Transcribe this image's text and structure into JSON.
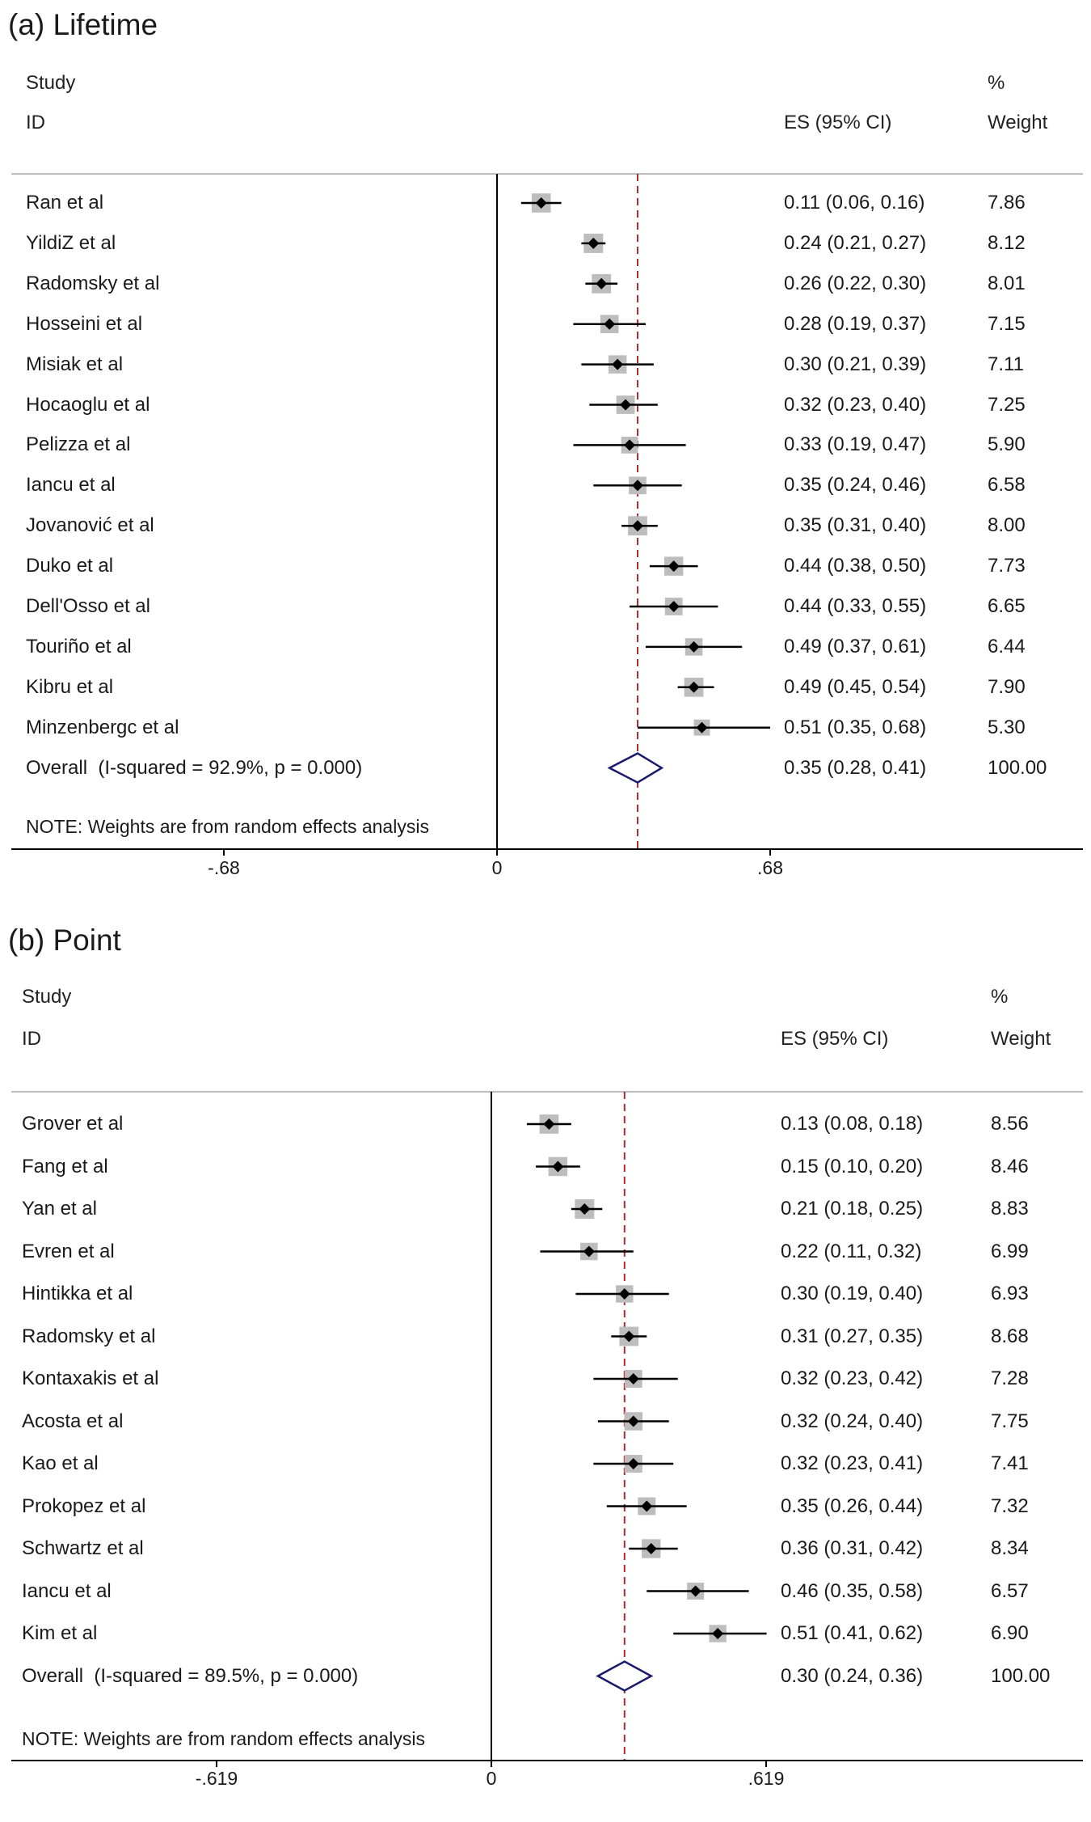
{
  "chart_data": [
    {
      "type": "forest",
      "title": "(a) Lifetime",
      "headers": {
        "study_line1": "Study",
        "study_line2": "ID",
        "es": "ES (95% CI)",
        "weight_line1": "%",
        "weight_line2": "Weight"
      },
      "studies": [
        {
          "id": "Ran et al",
          "es": 0.11,
          "lo": 0.06,
          "hi": 0.16,
          "es_text": "0.11 (0.06, 0.16)",
          "weight": 7.86,
          "weight_text": "7.86"
        },
        {
          "id": "YildiZ et al",
          "es": 0.24,
          "lo": 0.21,
          "hi": 0.27,
          "es_text": "0.24 (0.21, 0.27)",
          "weight": 8.12,
          "weight_text": "8.12"
        },
        {
          "id": "Radomsky et al",
          "es": 0.26,
          "lo": 0.22,
          "hi": 0.3,
          "es_text": "0.26 (0.22, 0.30)",
          "weight": 8.01,
          "weight_text": "8.01"
        },
        {
          "id": "Hosseini et al",
          "es": 0.28,
          "lo": 0.19,
          "hi": 0.37,
          "es_text": "0.28 (0.19, 0.37)",
          "weight": 7.15,
          "weight_text": "7.15"
        },
        {
          "id": "Misiak et al",
          "es": 0.3,
          "lo": 0.21,
          "hi": 0.39,
          "es_text": "0.30 (0.21, 0.39)",
          "weight": 7.11,
          "weight_text": "7.11"
        },
        {
          "id": "Hocaoglu et al",
          "es": 0.32,
          "lo": 0.23,
          "hi": 0.4,
          "es_text": "0.32 (0.23, 0.40)",
          "weight": 7.25,
          "weight_text": "7.25"
        },
        {
          "id": "Pelizza et al",
          "es": 0.33,
          "lo": 0.19,
          "hi": 0.47,
          "es_text": "0.33 (0.19, 0.47)",
          "weight": 5.9,
          "weight_text": "5.90"
        },
        {
          "id": "Iancu et al",
          "es": 0.35,
          "lo": 0.24,
          "hi": 0.46,
          "es_text": "0.35 (0.24, 0.46)",
          "weight": 6.58,
          "weight_text": "6.58"
        },
        {
          "id": "Jovanović et al",
          "es": 0.35,
          "lo": 0.31,
          "hi": 0.4,
          "es_text": "0.35 (0.31, 0.40)",
          "weight": 8.0,
          "weight_text": "8.00"
        },
        {
          "id": "Duko et al",
          "es": 0.44,
          "lo": 0.38,
          "hi": 0.5,
          "es_text": "0.44 (0.38, 0.50)",
          "weight": 7.73,
          "weight_text": "7.73"
        },
        {
          "id": "Dell'Osso et al",
          "es": 0.44,
          "lo": 0.33,
          "hi": 0.55,
          "es_text": "0.44 (0.33, 0.55)",
          "weight": 6.65,
          "weight_text": "6.65"
        },
        {
          "id": "Touriño et al",
          "es": 0.49,
          "lo": 0.37,
          "hi": 0.61,
          "es_text": "0.49 (0.37, 0.61)",
          "weight": 6.44,
          "weight_text": "6.44"
        },
        {
          "id": "Kibru et al",
          "es": 0.49,
          "lo": 0.45,
          "hi": 0.54,
          "es_text": "0.49 (0.45, 0.54)",
          "weight": 7.9,
          "weight_text": "7.90"
        },
        {
          "id": "Minzenbergc et al",
          "es": 0.51,
          "lo": 0.35,
          "hi": 0.68,
          "es_text": "0.51 (0.35, 0.68)",
          "weight": 5.3,
          "weight_text": "5.30"
        }
      ],
      "overall": {
        "label": "Overall  (I-squared = 92.9%, p = 0.000)",
        "es": 0.35,
        "lo": 0.28,
        "hi": 0.41,
        "es_text": "0.35 (0.28, 0.41)",
        "weight_text": "100.00"
      },
      "note": "NOTE: Weights are from random effects analysis",
      "xlim": [
        -0.68,
        0.68
      ],
      "ticks": [
        -0.68,
        0,
        0.68
      ],
      "tick_labels": [
        "-.68",
        "0",
        ".68"
      ]
    },
    {
      "type": "forest",
      "title": "(b) Point",
      "headers": {
        "study_line1": "Study",
        "study_line2": "ID",
        "es": "ES (95% CI)",
        "weight_line1": "%",
        "weight_line2": "Weight"
      },
      "studies": [
        {
          "id": "Grover et al",
          "es": 0.13,
          "lo": 0.08,
          "hi": 0.18,
          "es_text": "0.13 (0.08, 0.18)",
          "weight": 8.56,
          "weight_text": "8.56"
        },
        {
          "id": "Fang et al",
          "es": 0.15,
          "lo": 0.1,
          "hi": 0.2,
          "es_text": "0.15 (0.10, 0.20)",
          "weight": 8.46,
          "weight_text": "8.46"
        },
        {
          "id": "Yan et al",
          "es": 0.21,
          "lo": 0.18,
          "hi": 0.25,
          "es_text": "0.21 (0.18, 0.25)",
          "weight": 8.83,
          "weight_text": "8.83"
        },
        {
          "id": "Evren et al",
          "es": 0.22,
          "lo": 0.11,
          "hi": 0.32,
          "es_text": "0.22 (0.11, 0.32)",
          "weight": 6.99,
          "weight_text": "6.99"
        },
        {
          "id": "Hintikka et al",
          "es": 0.3,
          "lo": 0.19,
          "hi": 0.4,
          "es_text": "0.30 (0.19, 0.40)",
          "weight": 6.93,
          "weight_text": "6.93"
        },
        {
          "id": "Radomsky et al",
          "es": 0.31,
          "lo": 0.27,
          "hi": 0.35,
          "es_text": "0.31 (0.27, 0.35)",
          "weight": 8.68,
          "weight_text": "8.68"
        },
        {
          "id": "Kontaxakis et al",
          "es": 0.32,
          "lo": 0.23,
          "hi": 0.42,
          "es_text": "0.32 (0.23, 0.42)",
          "weight": 7.28,
          "weight_text": "7.28"
        },
        {
          "id": "Acosta et al",
          "es": 0.32,
          "lo": 0.24,
          "hi": 0.4,
          "es_text": "0.32 (0.24, 0.40)",
          "weight": 7.75,
          "weight_text": "7.75"
        },
        {
          "id": "Kao et al",
          "es": 0.32,
          "lo": 0.23,
          "hi": 0.41,
          "es_text": "0.32 (0.23, 0.41)",
          "weight": 7.41,
          "weight_text": "7.41"
        },
        {
          "id": "Prokopez et al",
          "es": 0.35,
          "lo": 0.26,
          "hi": 0.44,
          "es_text": "0.35 (0.26, 0.44)",
          "weight": 7.32,
          "weight_text": "7.32"
        },
        {
          "id": "Schwartz et al",
          "es": 0.36,
          "lo": 0.31,
          "hi": 0.42,
          "es_text": "0.36 (0.31, 0.42)",
          "weight": 8.34,
          "weight_text": "8.34"
        },
        {
          "id": "Iancu et al",
          "es": 0.46,
          "lo": 0.35,
          "hi": 0.58,
          "es_text": "0.46 (0.35, 0.58)",
          "weight": 6.57,
          "weight_text": "6.57"
        },
        {
          "id": "Kim et al",
          "es": 0.51,
          "lo": 0.41,
          "hi": 0.62,
          "es_text": "0.51 (0.41, 0.62)",
          "weight": 6.9,
          "weight_text": "6.90"
        }
      ],
      "overall": {
        "label": "Overall  (I-squared = 89.5%, p = 0.000)",
        "es": 0.3,
        "lo": 0.24,
        "hi": 0.36,
        "es_text": "0.30 (0.24, 0.36)",
        "weight_text": "100.00"
      },
      "note": "NOTE: Weights are from random effects analysis",
      "xlim": [
        -0.619,
        0.619
      ],
      "ticks": [
        -0.619,
        0,
        0.619
      ],
      "tick_labels": [
        "-.619",
        "0",
        ".619"
      ]
    }
  ],
  "colors": {
    "line": "#000000",
    "separator": "#bbbbbb",
    "ref_line": "#a23030",
    "diamond": "#1a1a6e",
    "weight_box": "#bdbdbd",
    "marker": "#000000"
  }
}
